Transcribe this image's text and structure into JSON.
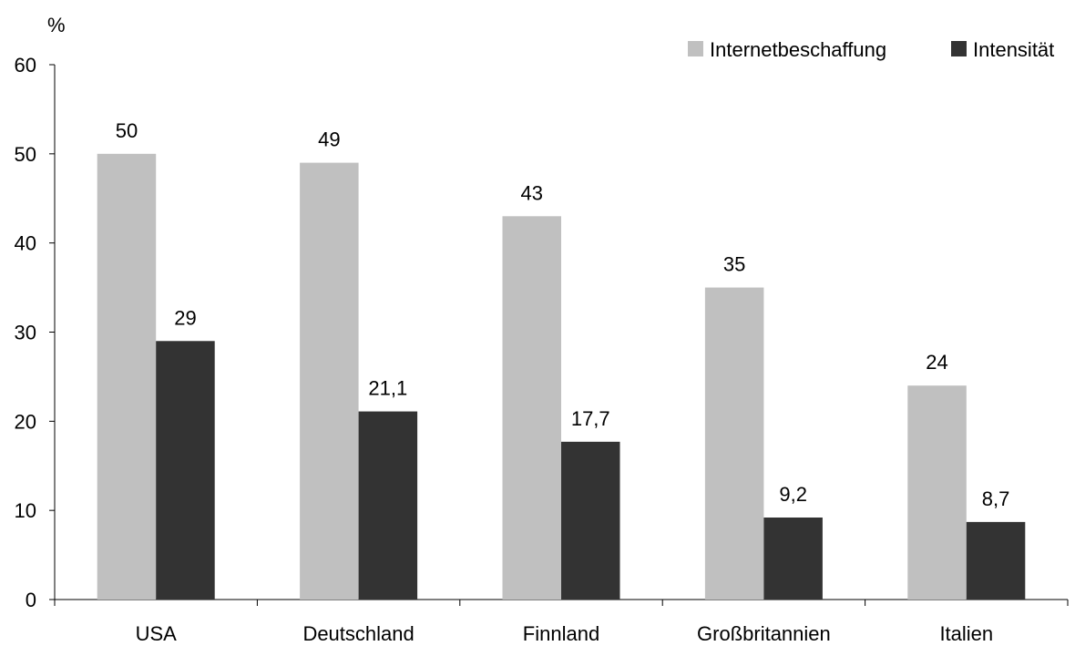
{
  "chart_data": {
    "type": "bar",
    "title": "",
    "xlabel": "",
    "ylabel": "%",
    "ylim": [
      0,
      60
    ],
    "yticks": [
      0,
      10,
      20,
      30,
      40,
      50,
      60
    ],
    "categories": [
      "USA",
      "Deutschland",
      "Finnland",
      "Großbritannien",
      "Italien"
    ],
    "series": [
      {
        "name": "Internetbeschaffung",
        "color": "#c0c0c0",
        "values": [
          50,
          49,
          43,
          35,
          24
        ],
        "labels": [
          "50",
          "49",
          "43",
          "35",
          "24"
        ]
      },
      {
        "name": "Intensität",
        "color": "#333333",
        "values": [
          29,
          21.1,
          17.7,
          9.2,
          8.7
        ],
        "labels": [
          "29",
          "21,1",
          "17,7",
          "9,2",
          "8,7"
        ]
      }
    ],
    "legend_position": "top-right",
    "grid": false
  }
}
